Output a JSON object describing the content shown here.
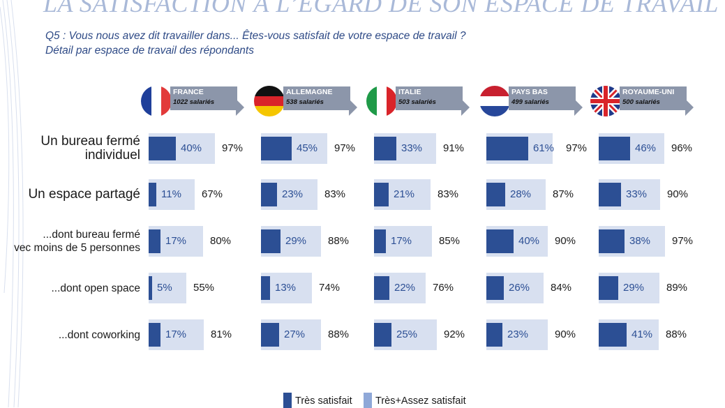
{
  "title": "LA SATISFACTION À L’ÉGARD DE SON ESPACE DE TRAVAIL",
  "question": "Q5 : Vous nous avez dit travailler dans... Êtes-vous satisfait de votre espace de travail ?",
  "subtitle": "Détail par espace de travail des répondants",
  "colors": {
    "dark": "#2c4f94",
    "light": "#d8e0f0",
    "legend_light": "#8fa8d8",
    "banner": "#8c96aa"
  },
  "legend": {
    "dark": "Très satisfait",
    "light": "Très+Assez satisfait"
  },
  "rows": [
    {
      "line1": "Un bureau fermé",
      "line2": "individuel"
    },
    {
      "line1": "Un espace partagé",
      "line2": ""
    },
    {
      "line1": "...dont bureau fermé",
      "line2": "vec moins de 5 personnes"
    },
    {
      "line1": "...dont open space",
      "line2": ""
    },
    {
      "line1": "...dont coworking",
      "line2": ""
    }
  ],
  "countries": [
    {
      "name": "FRANCE",
      "sub": "1022 salariés",
      "flag": "france-flag-icon"
    },
    {
      "name": "ALLEMAGNE",
      "sub": "538 salariés",
      "flag": "germany-flag-icon"
    },
    {
      "name": "ITALIE",
      "sub": "503 salariés",
      "flag": "italy-flag-icon"
    },
    {
      "name": "PAYS BAS",
      "sub": "499 salariés",
      "flag": "netherlands-flag-icon"
    },
    {
      "name": "ROYAUME-UNI",
      "sub": "500 salariés",
      "flag": "uk-flag-icon"
    }
  ],
  "chart_data": {
    "type": "bar",
    "title": "LA SATISFACTION À L’ÉGARD DE SON ESPACE DE TRAVAIL",
    "categories": [
      "Un bureau fermé individuel",
      "Un espace partagé",
      "...dont bureau fermé vec moins de 5 personnes",
      "...dont open space",
      "...dont coworking"
    ],
    "ylim": [
      0,
      100
    ],
    "groups": [
      {
        "name": "FRANCE",
        "series": [
          {
            "name": "Très satisfait",
            "values": [
              40,
              11,
              17,
              5,
              17
            ]
          },
          {
            "name": "Très+Assez satisfait",
            "values": [
              97,
              67,
              80,
              55,
              81
            ]
          }
        ]
      },
      {
        "name": "ALLEMAGNE",
        "series": [
          {
            "name": "Très satisfait",
            "values": [
              45,
              23,
              29,
              13,
              27
            ]
          },
          {
            "name": "Très+Assez satisfait",
            "values": [
              97,
              83,
              88,
              74,
              88
            ]
          }
        ]
      },
      {
        "name": "ITALIE",
        "series": [
          {
            "name": "Très satisfait",
            "values": [
              33,
              21,
              17,
              22,
              25
            ]
          },
          {
            "name": "Très+Assez satisfait",
            "values": [
              91,
              83,
              85,
              76,
              92
            ]
          }
        ]
      },
      {
        "name": "PAYS BAS",
        "series": [
          {
            "name": "Très satisfait",
            "values": [
              61,
              28,
              40,
              26,
              23
            ]
          },
          {
            "name": "Très+Assez satisfait",
            "values": [
              97,
              87,
              90,
              84,
              90
            ]
          }
        ]
      },
      {
        "name": "ROYAUME-UNI",
        "series": [
          {
            "name": "Très satisfait",
            "values": [
              46,
              33,
              38,
              29,
              41
            ]
          },
          {
            "name": "Très+Assez satisfait",
            "values": [
              96,
              90,
              97,
              89,
              88
            ]
          }
        ]
      }
    ],
    "legend_position": "bottom"
  }
}
